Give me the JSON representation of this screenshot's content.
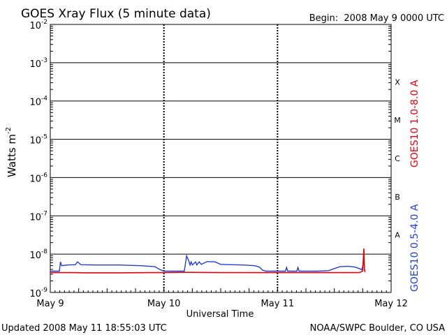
{
  "header": {
    "title": "GOES Xray Flux (5 minute data)",
    "begin": "Begin:  2008 May 9 0000 UTC"
  },
  "footer": {
    "updated": "Updated 2008 May 11 18:55:03 UTC",
    "source": "NOAA/SWPC Boulder, CO USA"
  },
  "colors": {
    "long_channel": "#e8000b",
    "short_channel": "#1f3fd6",
    "grid": "#000000",
    "background": "#ffffff"
  },
  "chart_data": {
    "type": "line",
    "title": "GOES Xray Flux (5 minute data)",
    "xlabel": "Universal Time",
    "ylabel_text": "Watts m",
    "ylabel_exponent": "-2",
    "yscale": "log",
    "ylim": [
      1e-09,
      0.01
    ],
    "xlim_days": [
      0,
      3
    ],
    "x_ticks": [
      {
        "day": 0,
        "label": "May 9"
      },
      {
        "day": 1,
        "label": "May 10"
      },
      {
        "day": 2,
        "label": "May 11"
      },
      {
        "day": 3,
        "label": "May 12"
      }
    ],
    "y_ticks": [
      {
        "exp": -2,
        "base": "10",
        "sup": "-2"
      },
      {
        "exp": -3,
        "base": "10",
        "sup": "-3"
      },
      {
        "exp": -4,
        "base": "10",
        "sup": "-4"
      },
      {
        "exp": -5,
        "base": "10",
        "sup": "-5"
      },
      {
        "exp": -6,
        "base": "10",
        "sup": "-6"
      },
      {
        "exp": -7,
        "base": "10",
        "sup": "-7"
      },
      {
        "exp": -8,
        "base": "10",
        "sup": "-8"
      },
      {
        "exp": -9,
        "base": "10",
        "sup": "-9"
      }
    ],
    "flare_classes": [
      {
        "label": "X",
        "exp_low": -4
      },
      {
        "label": "M",
        "exp_low": -5
      },
      {
        "label": "C",
        "exp_low": -6
      },
      {
        "label": "B",
        "exp_low": -7
      },
      {
        "label": "A",
        "exp_low": -8
      }
    ],
    "grid": true,
    "series": [
      {
        "name": "GOES10 1.0-8.0 A",
        "color": "#e8000b",
        "points": [
          [
            0.0,
            3.3e-09
          ],
          [
            0.2,
            3.3e-09
          ],
          [
            0.3,
            3.25e-09
          ],
          [
            0.6,
            3.25e-09
          ],
          [
            0.9,
            3.3e-09
          ],
          [
            1.0,
            3.3e-09
          ],
          [
            1.2,
            3.35e-09
          ],
          [
            1.5,
            3.3e-09
          ],
          [
            1.8,
            3.3e-09
          ],
          [
            2.0,
            3.3e-09
          ],
          [
            2.3,
            3.3e-09
          ],
          [
            2.6,
            3.3e-09
          ],
          [
            2.72,
            3.3e-09
          ],
          [
            2.74,
            3.5e-09
          ],
          [
            2.75,
            3.6e-09
          ],
          [
            2.76,
            1.4e-08
          ],
          [
            2.765,
            4e-09
          ],
          [
            2.77,
            3.4e-09
          ]
        ]
      },
      {
        "name": "GOES10 0.5-4.0 A",
        "color": "#1f3fd6",
        "points": [
          [
            0.0,
            3.6e-09
          ],
          [
            0.08,
            3.6e-09
          ],
          [
            0.09,
            6.3e-09
          ],
          [
            0.1,
            5e-09
          ],
          [
            0.15,
            5.2e-09
          ],
          [
            0.22,
            5.3e-09
          ],
          [
            0.24,
            6.3e-09
          ],
          [
            0.27,
            5.3e-09
          ],
          [
            0.4,
            5.2e-09
          ],
          [
            0.6,
            5.2e-09
          ],
          [
            0.8,
            5e-09
          ],
          [
            0.92,
            4.7e-09
          ],
          [
            0.97,
            3.9e-09
          ],
          [
            1.0,
            3.6e-09
          ],
          [
            1.15,
            3.6e-09
          ],
          [
            1.18,
            3.6e-09
          ],
          [
            1.2,
            9e-09
          ],
          [
            1.22,
            6.5e-09
          ],
          [
            1.23,
            5.2e-09
          ],
          [
            1.24,
            6.3e-09
          ],
          [
            1.25,
            5.2e-09
          ],
          [
            1.28,
            6.3e-09
          ],
          [
            1.29,
            5.2e-09
          ],
          [
            1.31,
            6.3e-09
          ],
          [
            1.33,
            5.4e-09
          ],
          [
            1.38,
            6.4e-09
          ],
          [
            1.45,
            6.3e-09
          ],
          [
            1.5,
            5.4e-09
          ],
          [
            1.6,
            5.3e-09
          ],
          [
            1.7,
            5.2e-09
          ],
          [
            1.8,
            5e-09
          ],
          [
            1.84,
            4.6e-09
          ],
          [
            1.87,
            3.8e-09
          ],
          [
            1.9,
            3.6e-09
          ],
          [
            2.0,
            3.6e-09
          ],
          [
            2.07,
            3.6e-09
          ],
          [
            2.08,
            4.5e-09
          ],
          [
            2.09,
            3.6e-09
          ],
          [
            2.17,
            3.6e-09
          ],
          [
            2.18,
            4.5e-09
          ],
          [
            2.19,
            3.6e-09
          ],
          [
            2.35,
            3.6e-09
          ],
          [
            2.45,
            3.7e-09
          ],
          [
            2.5,
            4.2e-09
          ],
          [
            2.55,
            4.7e-09
          ],
          [
            2.62,
            4.8e-09
          ],
          [
            2.68,
            4.6e-09
          ],
          [
            2.72,
            4.2e-09
          ],
          [
            2.74,
            3.9e-09
          ],
          [
            2.75,
            4.8e-09
          ],
          [
            2.76,
            7.5e-09
          ],
          [
            2.765,
            4e-09
          ],
          [
            2.77,
            3.6e-09
          ]
        ]
      }
    ]
  }
}
